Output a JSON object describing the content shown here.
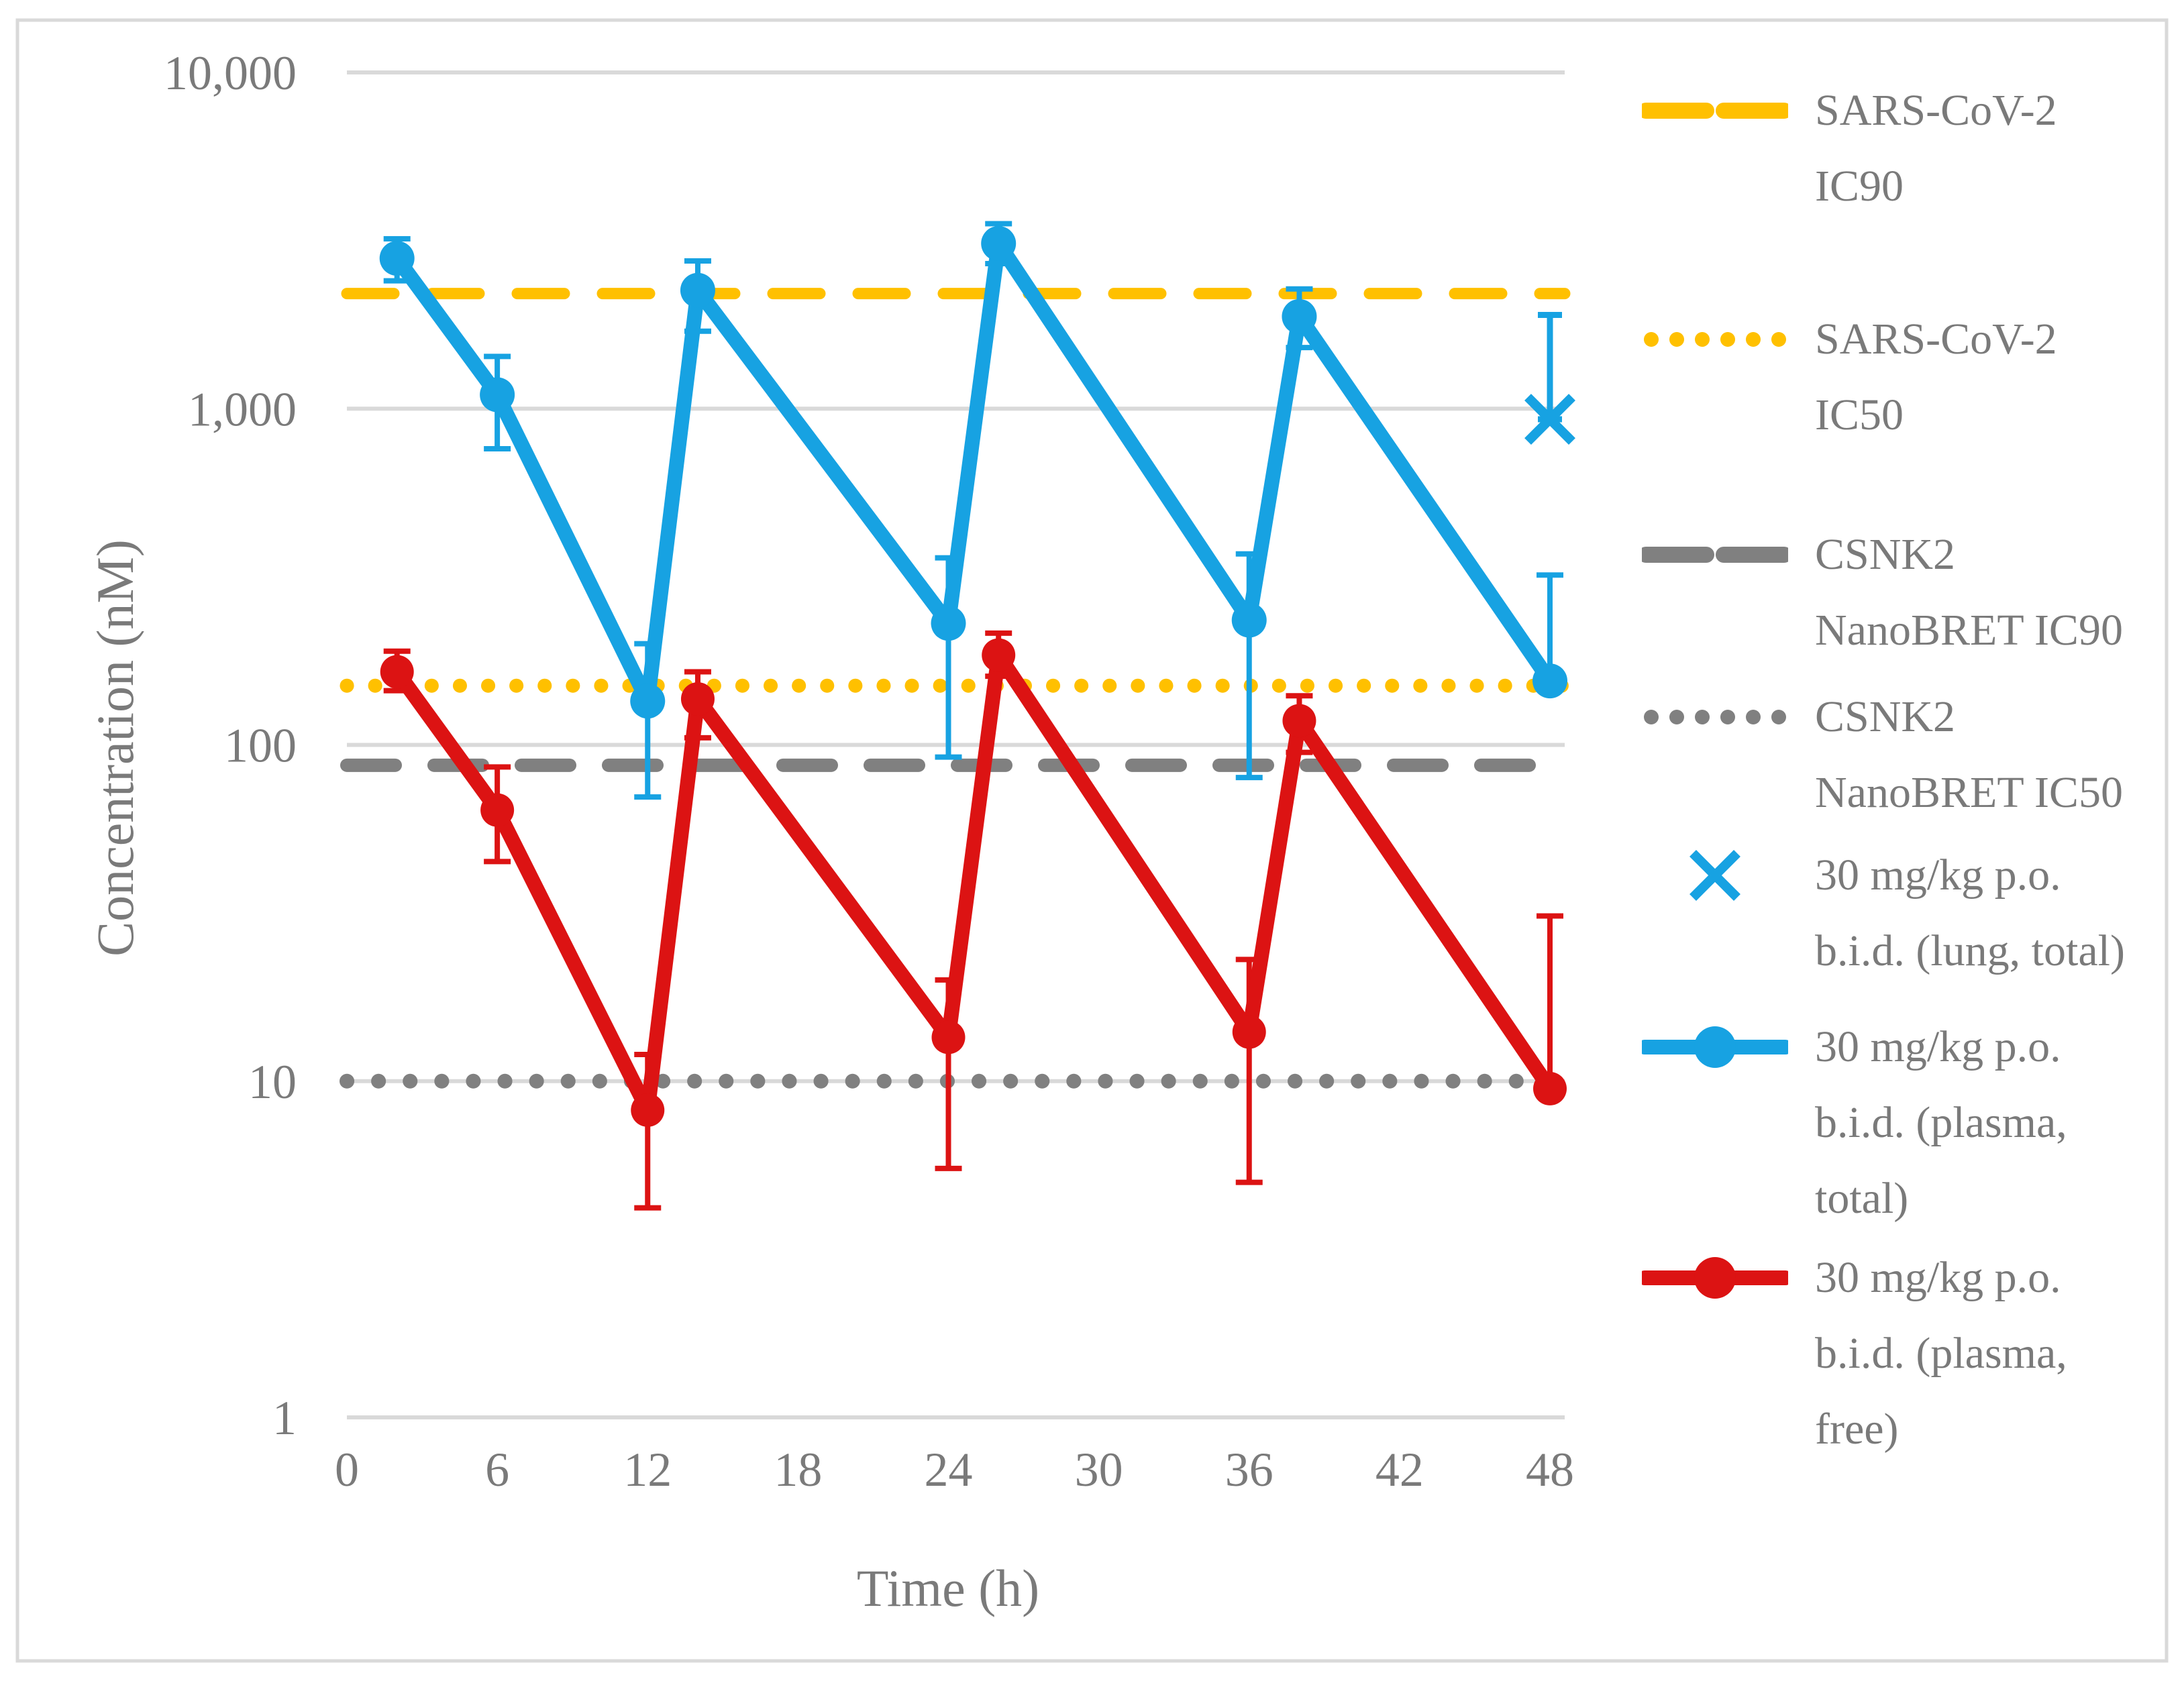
{
  "chart_data": {
    "type": "line",
    "title": "",
    "xlabel": "Time (h)",
    "ylabel": "Concentration (nM)",
    "x_ticks": [
      0,
      6,
      12,
      18,
      24,
      30,
      36,
      42,
      48
    ],
    "xlim": [
      0,
      48
    ],
    "ylim": [
      1,
      10000
    ],
    "y_scale": "log",
    "grid": "horizontal-only",
    "legend_position": "right",
    "y_ticks": [
      {
        "value": 10000,
        "label": "10,000"
      },
      {
        "value": 1000,
        "label": "1,000"
      },
      {
        "value": 100,
        "label": "100"
      },
      {
        "value": 10,
        "label": "10"
      },
      {
        "value": 1,
        "label": "1"
      }
    ],
    "colors": {
      "gold": "#FFC000",
      "gray": "#808080",
      "blue": "#17A2E2",
      "red": "#DC1313",
      "gridline": "#D9D9D9",
      "border": "#D9D9D9",
      "text": "#7A7A7A"
    },
    "reference_lines": [
      {
        "id": "sars-cov-2-ic90",
        "name": "SARS-CoV-2 IC90",
        "value": 2200,
        "tone": "gold",
        "style": "dashed"
      },
      {
        "id": "sars-cov-2-ic50",
        "name": "SARS-CoV-2 IC50",
        "value": 150,
        "tone": "gold",
        "style": "dotted"
      },
      {
        "id": "csnk2-nanobret-ic90",
        "name": "CSNK2 NanoBRET IC90",
        "value": 87,
        "tone": "gray",
        "style": "dashed"
      },
      {
        "id": "csnk2-nanobret-ic50",
        "name": "CSNK2 NanoBRET IC50",
        "value": 10,
        "tone": "gray",
        "style": "dotted"
      }
    ],
    "series": [
      {
        "id": "plasma-free",
        "name": "30 mg/kg p.o. b.i.d. (plasma, free)",
        "color": "#DC1313",
        "marker": "circle",
        "marker_r": 25,
        "points": [
          {
            "t": 2,
            "y": 165,
            "lo": 145,
            "hi": 190
          },
          {
            "t": 6,
            "y": 64,
            "lo": 45,
            "hi": 86
          },
          {
            "t": 12,
            "y": 8.2,
            "lo": 4.2,
            "hi": 12
          },
          {
            "t": 14,
            "y": 137,
            "lo": 105,
            "hi": 165
          },
          {
            "t": 24,
            "y": 13.5,
            "lo": 5.5,
            "hi": 20
          },
          {
            "t": 26,
            "y": 185,
            "lo": 160,
            "hi": 215
          },
          {
            "t": 36,
            "y": 14,
            "lo": 5,
            "hi": 23
          },
          {
            "t": 38,
            "y": 118,
            "lo": 95,
            "hi": 140
          },
          {
            "t": 48,
            "y": 9.5,
            "lo": 9.5,
            "hi": 31
          }
        ]
      },
      {
        "id": "plasma-total",
        "name": "30 mg/kg p.o. b.i.d. (plasma, total)",
        "color": "#17A2E2",
        "marker": "circle",
        "marker_r": 26,
        "points": [
          {
            "t": 2,
            "y": 2800,
            "lo": 2400,
            "hi": 3200
          },
          {
            "t": 6,
            "y": 1100,
            "lo": 760,
            "hi": 1430
          },
          {
            "t": 12,
            "y": 135,
            "lo": 70,
            "hi": 200
          },
          {
            "t": 14,
            "y": 2250,
            "lo": 1700,
            "hi": 2750
          },
          {
            "t": 24,
            "y": 230,
            "lo": 92,
            "hi": 360
          },
          {
            "t": 26,
            "y": 3100,
            "lo": 2700,
            "hi": 3550
          },
          {
            "t": 36,
            "y": 235,
            "lo": 80,
            "hi": 370
          },
          {
            "t": 38,
            "y": 1880,
            "lo": 1520,
            "hi": 2270
          },
          {
            "t": 48,
            "y": 155,
            "lo": 155,
            "hi": 320
          }
        ]
      },
      {
        "id": "lung-total",
        "name": "30 mg/kg p.o. b.i.d. (lung, total)",
        "color": "#17A2E2",
        "marker": "x",
        "points": [
          {
            "t": 48,
            "y": 930,
            "lo": 930,
            "hi": 1900
          }
        ]
      }
    ],
    "legend": [
      {
        "id": "sars-cov-2-ic90",
        "symbol": "dash",
        "tone": "gold",
        "label": "SARS-CoV-2 IC90",
        "gap_after": 115
      },
      {
        "id": "sars-cov-2-ic50",
        "symbol": "dots",
        "tone": "gold",
        "label": "SARS-CoV-2 IC50",
        "gap_after": 95
      },
      {
        "id": "csnk2-nanobret-ic90",
        "symbol": "dash",
        "tone": "gray",
        "label": "CSNK2 NanoBRET IC90",
        "gap_after": 16
      },
      {
        "id": "csnk2-nanobret-ic50",
        "symbol": "dots",
        "tone": "gray",
        "label": "CSNK2 NanoBRET IC50",
        "gap_after": 10
      },
      {
        "id": "lung-total",
        "symbol": "x",
        "tone": "blue",
        "label": "30 mg/kg p.o. b.i.d. (lung, total)",
        "gap_after": 30
      },
      {
        "id": "plasma-total",
        "symbol": "line-circle",
        "tone": "blue",
        "label": "30 mg/kg p.o. b.i.d. (plasma, total)",
        "gap_after": 5
      },
      {
        "id": "plasma-free",
        "symbol": "line-circle",
        "tone": "red",
        "label": "30 mg/kg p.o. b.i.d. (plasma, free)",
        "gap_after": 0
      }
    ]
  }
}
